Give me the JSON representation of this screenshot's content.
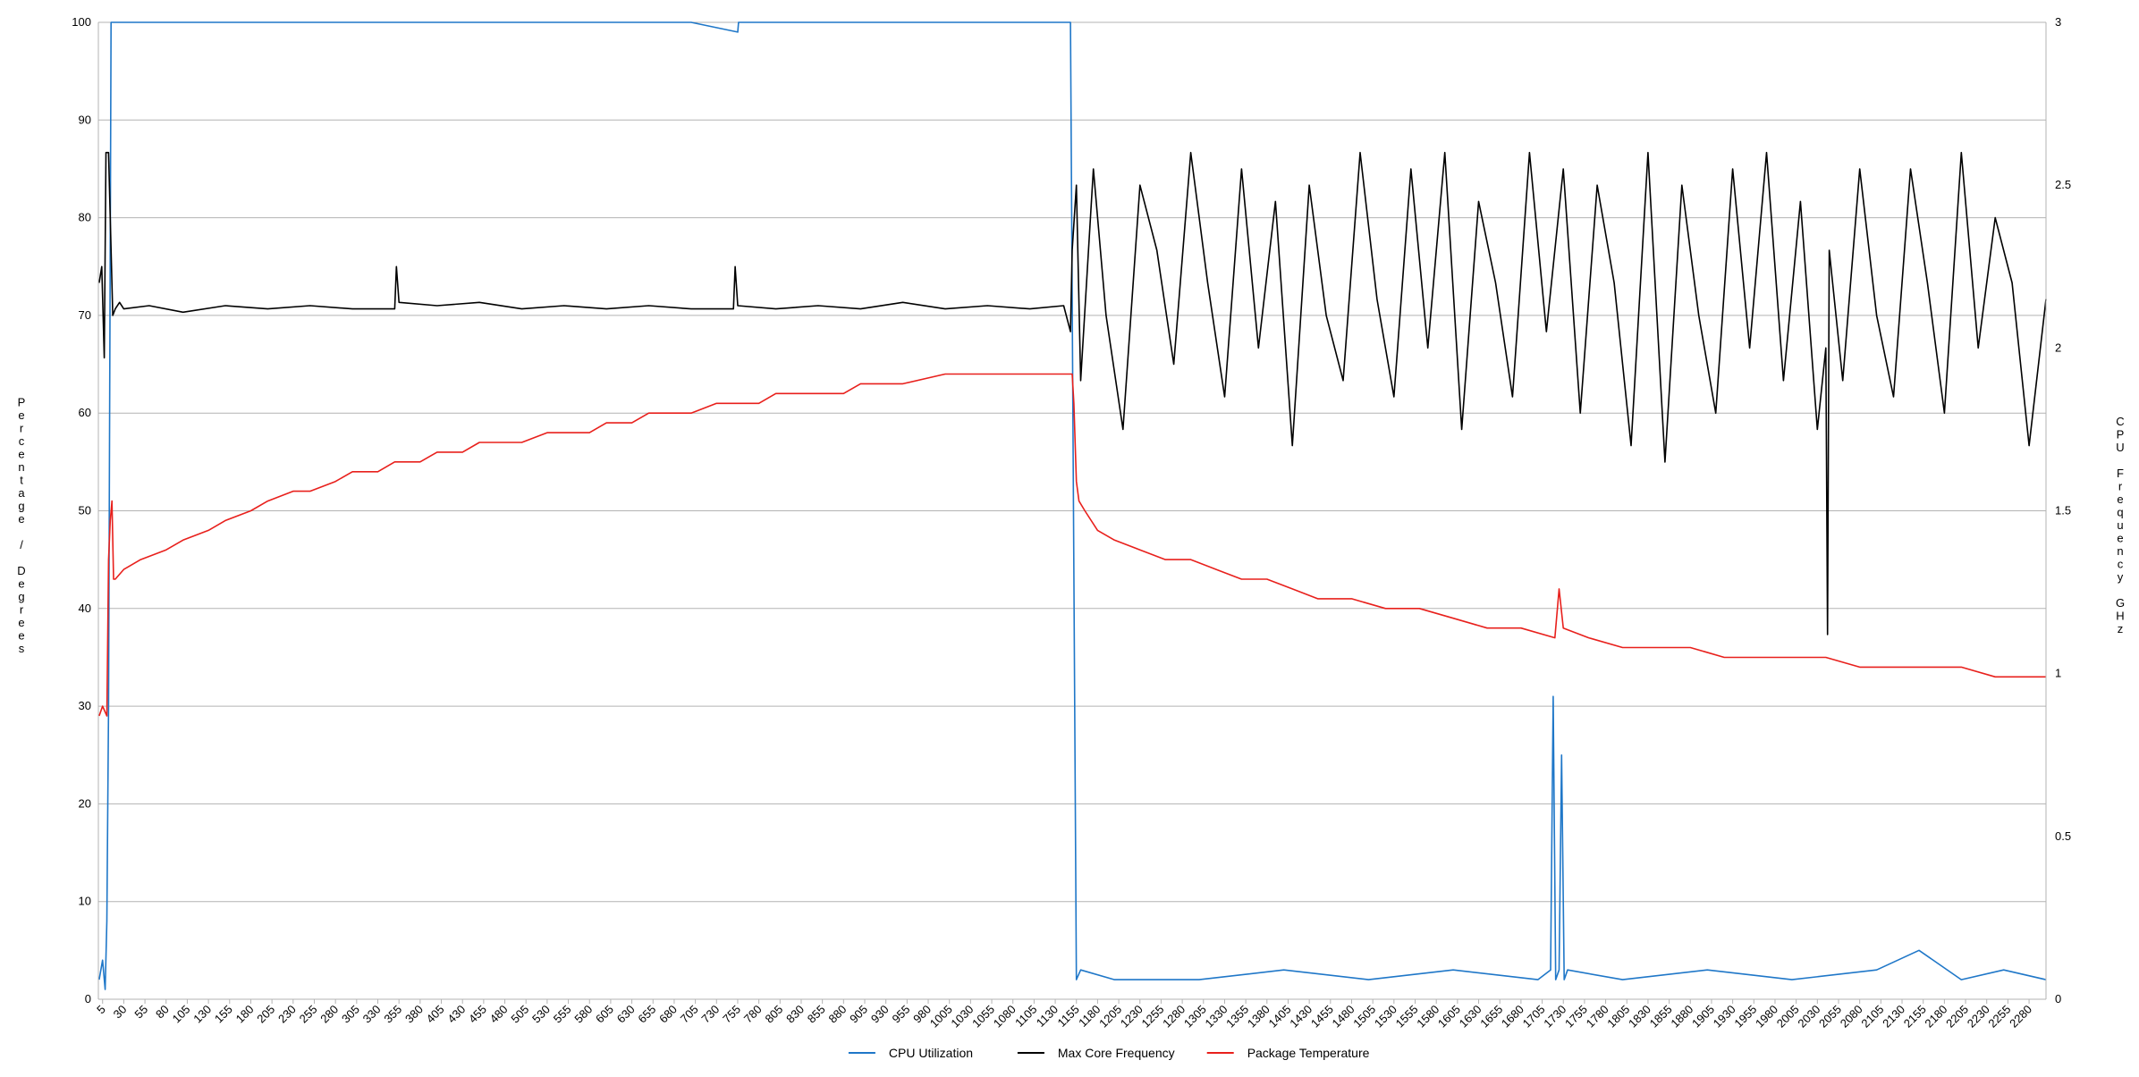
{
  "chart_data": {
    "type": "line",
    "title": "",
    "xlabel": "",
    "ylabel_left": "Percentage / Degrees",
    "ylabel_right": "CPU Frequency GHz",
    "xlim": [
      0,
      2300
    ],
    "ylim_left": [
      0,
      100
    ],
    "ylim_right": [
      0,
      3
    ],
    "yticks_left": [
      0,
      10,
      20,
      30,
      40,
      50,
      60,
      70,
      80,
      90,
      100
    ],
    "yticks_right": [
      "0",
      "0.5",
      "1",
      "1.5",
      "2",
      "2.5",
      "3"
    ],
    "grid": true,
    "legend_position": "bottom",
    "x_tick_start": 5,
    "x_tick_step": 25,
    "x_tick_count": 92,
    "series": [
      {
        "name": "CPU Utilization",
        "axis": "left",
        "color": "#1f77c8",
        "x": [
          1,
          5,
          8,
          10,
          12,
          15,
          100,
          200,
          300,
          400,
          500,
          600,
          700,
          755,
          756,
          800,
          900,
          1000,
          1100,
          1145,
          1148,
          1155,
          1160,
          1200,
          1300,
          1400,
          1500,
          1600,
          1700,
          1715,
          1718,
          1721,
          1725,
          1728,
          1731,
          1735,
          1800,
          1900,
          2000,
          2100,
          2150,
          2200,
          2250,
          2300
        ],
        "values": [
          2,
          4,
          1,
          8,
          30,
          100,
          100,
          100,
          100,
          100,
          100,
          100,
          100,
          99,
          100,
          100,
          100,
          100,
          100,
          100,
          100,
          2,
          3,
          2,
          2,
          3,
          2,
          3,
          2,
          3,
          31,
          2,
          3,
          25,
          2,
          3,
          2,
          3,
          2,
          3,
          5,
          2,
          3,
          2
        ]
      },
      {
        "name": "Max Core Frequency",
        "axis": "right",
        "color": "#000000",
        "x": [
          1,
          4,
          7,
          9,
          12,
          17,
          20,
          25,
          30,
          60,
          100,
          150,
          200,
          250,
          300,
          350,
          352,
          355,
          400,
          450,
          500,
          550,
          600,
          650,
          700,
          750,
          752,
          755,
          800,
          850,
          900,
          950,
          1000,
          1050,
          1100,
          1140,
          1148,
          1150,
          1155,
          1160,
          1175,
          1190,
          1210,
          1230,
          1250,
          1270,
          1290,
          1310,
          1330,
          1350,
          1370,
          1390,
          1410,
          1430,
          1450,
          1470,
          1490,
          1510,
          1530,
          1550,
          1570,
          1590,
          1610,
          1630,
          1650,
          1670,
          1690,
          1710,
          1730,
          1750,
          1770,
          1790,
          1810,
          1830,
          1850,
          1870,
          1890,
          1910,
          1930,
          1950,
          1970,
          1990,
          2010,
          2030,
          2040,
          2042,
          2044,
          2060,
          2080,
          2100,
          2120,
          2140,
          2160,
          2180,
          2200,
          2220,
          2240,
          2260,
          2280,
          2300
        ],
        "values": [
          2.2,
          2.25,
          1.97,
          2.6,
          2.6,
          2.1,
          2.12,
          2.14,
          2.12,
          2.13,
          2.11,
          2.13,
          2.12,
          2.13,
          2.12,
          2.12,
          2.25,
          2.14,
          2.13,
          2.14,
          2.12,
          2.13,
          2.12,
          2.13,
          2.12,
          2.12,
          2.25,
          2.13,
          2.12,
          2.13,
          2.12,
          2.14,
          2.12,
          2.13,
          2.12,
          2.13,
          2.05,
          2.3,
          2.5,
          1.9,
          2.55,
          2.1,
          1.75,
          2.5,
          2.3,
          1.95,
          2.6,
          2.2,
          1.85,
          2.55,
          2.0,
          2.45,
          1.7,
          2.5,
          2.1,
          1.9,
          2.6,
          2.15,
          1.85,
          2.55,
          2.0,
          2.6,
          1.75,
          2.45,
          2.2,
          1.85,
          2.6,
          2.05,
          2.55,
          1.8,
          2.5,
          2.2,
          1.7,
          2.6,
          1.65,
          2.5,
          2.1,
          1.8,
          2.55,
          2.0,
          2.6,
          1.9,
          2.45,
          1.75,
          2.0,
          1.12,
          2.3,
          1.9,
          2.55,
          2.1,
          1.85,
          2.55,
          2.2,
          1.8,
          2.6,
          2.0,
          2.4,
          2.2,
          1.7,
          2.15
        ]
      },
      {
        "name": "Package Temperature",
        "axis": "left",
        "color": "#e8201c",
        "x": [
          1,
          5,
          10,
          12,
          14,
          16,
          18,
          20,
          30,
          50,
          80,
          100,
          130,
          150,
          180,
          200,
          230,
          250,
          280,
          300,
          330,
          350,
          380,
          400,
          430,
          450,
          480,
          500,
          530,
          550,
          580,
          600,
          630,
          650,
          680,
          700,
          730,
          750,
          780,
          800,
          830,
          850,
          880,
          900,
          930,
          950,
          1000,
          1050,
          1100,
          1150,
          1152,
          1155,
          1158,
          1165,
          1180,
          1200,
          1230,
          1260,
          1290,
          1320,
          1350,
          1380,
          1410,
          1440,
          1480,
          1520,
          1560,
          1600,
          1640,
          1680,
          1720,
          1725,
          1730,
          1760,
          1800,
          1840,
          1880,
          1920,
          1960,
          2000,
          2040,
          2080,
          2120,
          2160,
          2200,
          2240,
          2280,
          2300
        ],
        "values": [
          29,
          30,
          29,
          45,
          49,
          51,
          43,
          43,
          44,
          45,
          46,
          47,
          48,
          49,
          50,
          51,
          52,
          52,
          53,
          54,
          54,
          55,
          55,
          56,
          56,
          57,
          57,
          57,
          58,
          58,
          58,
          59,
          59,
          60,
          60,
          60,
          61,
          61,
          61,
          62,
          62,
          62,
          62,
          63,
          63,
          63,
          64,
          64,
          64,
          64,
          61,
          53,
          51,
          50,
          48,
          47,
          46,
          45,
          45,
          44,
          43,
          43,
          42,
          41,
          41,
          40,
          40,
          39,
          38,
          38,
          37,
          42,
          38,
          37,
          36,
          36,
          36,
          35,
          35,
          35,
          35,
          34,
          34,
          34,
          34,
          33,
          33,
          33
        ]
      }
    ]
  }
}
